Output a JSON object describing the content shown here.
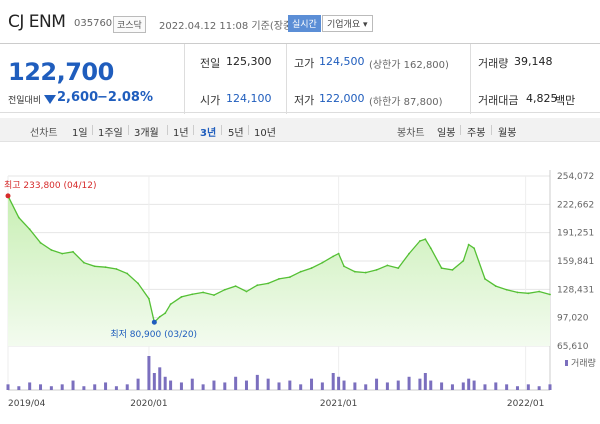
{
  "header": {
    "name": "CJ ENM",
    "code": "035760",
    "market": "코스닥",
    "timestamp": "2022.04.12 11:08 기준(장중)",
    "live_button": "실시간",
    "corp_button": "기업개요 ▾"
  },
  "quote": {
    "price": "122,700",
    "change_label": "전일대비",
    "change": "2,600",
    "change_pct": "−2.08%",
    "direction": "down",
    "prev_label": "전일",
    "prev": "125,300",
    "open_label": "시가",
    "open": "124,100",
    "high_label": "고가",
    "high": "124,500",
    "upper_limit": "(상한가 162,800)",
    "low_label": "저가",
    "low": "122,000",
    "lower_limit": "(하한가 87,800)",
    "volume_label": "거래량",
    "volume": "39,148",
    "amount_label": "거래대금",
    "amount": "4,825",
    "amount_unit": "백만"
  },
  "periods": {
    "line_label": "선차트",
    "line_items": [
      "1일",
      "1주일",
      "3개월",
      "1년",
      "3년",
      "5년",
      "10년"
    ],
    "selected": "3년",
    "candle_label": "봉차트",
    "candle_items": [
      "일봉",
      "주봉",
      "월봉"
    ]
  },
  "chart_data": {
    "type": "area",
    "title": "",
    "y_ticks": [
      "254,072",
      "222,662",
      "191,251",
      "159,841",
      "128,431",
      "97,020",
      "65,610"
    ],
    "ylim": [
      65610,
      254072
    ],
    "x_ticks": [
      "2019/04",
      "2020/01",
      "2021/01",
      "2022/01"
    ],
    "x_tick_positions": [
      0,
      0.26,
      0.61,
      0.955
    ],
    "high_note": "최고 233,800 (04/12)",
    "low_note": "최저 80,900 (03/20)",
    "volume_label": "거래량",
    "colors": {
      "line": "#55c035",
      "fill_top": "#c8efb4",
      "fill_bottom": "#f3fbef",
      "high": "#d62b2b",
      "low": "#1f5dbd",
      "volume": "#7b6fbe"
    },
    "x": [
      0,
      0.02,
      0.04,
      0.06,
      0.08,
      0.1,
      0.12,
      0.14,
      0.16,
      0.18,
      0.2,
      0.22,
      0.24,
      0.26,
      0.27,
      0.28,
      0.29,
      0.3,
      0.32,
      0.34,
      0.36,
      0.38,
      0.4,
      0.42,
      0.44,
      0.46,
      0.48,
      0.5,
      0.52,
      0.54,
      0.56,
      0.58,
      0.6,
      0.61,
      0.62,
      0.64,
      0.66,
      0.68,
      0.7,
      0.72,
      0.74,
      0.76,
      0.77,
      0.78,
      0.8,
      0.82,
      0.84,
      0.85,
      0.86,
      0.88,
      0.9,
      0.92,
      0.94,
      0.96,
      0.98,
      1.0
    ],
    "values": [
      232000,
      208000,
      195000,
      180000,
      172000,
      168000,
      170000,
      158000,
      154000,
      153000,
      151000,
      146000,
      135000,
      118000,
      92000,
      98000,
      102000,
      112000,
      120000,
      123000,
      125000,
      122000,
      128000,
      132000,
      126000,
      133000,
      135000,
      140000,
      142000,
      148000,
      152000,
      158000,
      165000,
      168000,
      154000,
      148000,
      147000,
      150000,
      155000,
      152000,
      168000,
      182000,
      184000,
      174000,
      152000,
      150000,
      160000,
      178000,
      174000,
      140000,
      132000,
      128000,
      125000,
      124000,
      126000,
      122700
    ],
    "volume": [
      3,
      2,
      4,
      3,
      2,
      3,
      5,
      2,
      3,
      4,
      2,
      3,
      6,
      18,
      9,
      12,
      7,
      5,
      4,
      6,
      3,
      5,
      4,
      7,
      5,
      8,
      6,
      4,
      5,
      3,
      6,
      4,
      9,
      7,
      5,
      4,
      3,
      6,
      4,
      5,
      7,
      6,
      9,
      5,
      4,
      3,
      4,
      6,
      5,
      3,
      4,
      3,
      2,
      3,
      2,
      3
    ]
  }
}
